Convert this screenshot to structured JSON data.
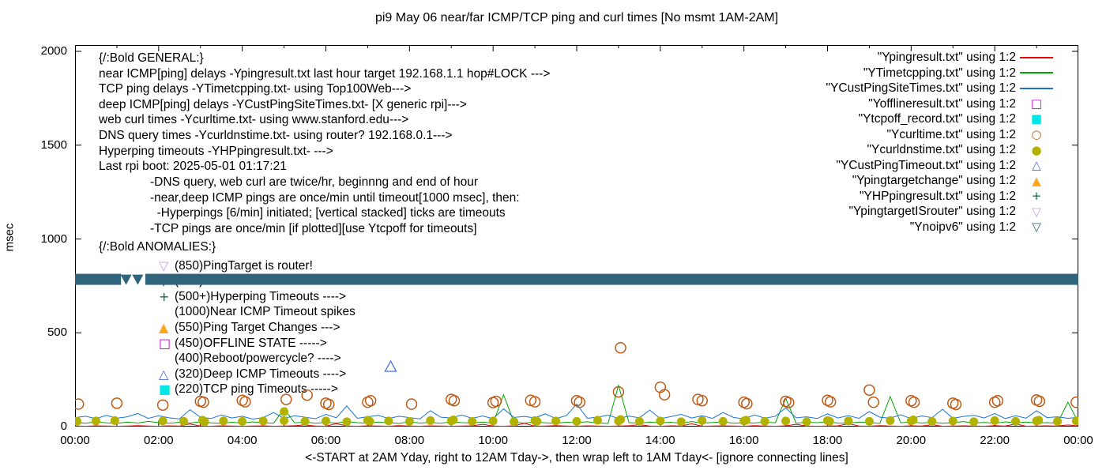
{
  "title": "pi9 May 06  near/far ICMP/TCP ping and curl times [No msmt 1AM-2AM]",
  "axes": {
    "ylabel": "msec",
    "y_ticks": [
      0,
      500,
      1000,
      1500,
      2000
    ],
    "x_tick_labels": [
      "00:00",
      "02:00",
      "04:00",
      "06:00",
      "08:00",
      "10:00",
      "12:00",
      "14:00",
      "16:00",
      "18:00",
      "20:00",
      "22:00",
      "00:00"
    ],
    "x_caption": "<-START at 2AM Yday, right to 12AM Tday->, then wrap left to 1AM Tday<- [ignore connecting lines]"
  },
  "annotations": {
    "general_lines": [
      "{/:Bold GENERAL:}",
      "near ICMP[ping] delays -Ypingresult.txt last hour target 192.168.1.1 hop#LOCK --->",
      "TCP ping delays -YTimetcpping.txt- using Top100Web--->",
      "deep ICMP[ping] delays -YCustPingSiteTimes.txt- [X generic rpi]--->",
      "web curl times -Ycurltime.txt- using www.stanford.edu--->",
      "DNS query times -Ycurldnstime.txt- using router? 192.168.0.1--->",
      "Hyperping timeouts -YHPpingresult.txt- --->",
      "Last rpi boot: 2025-05-01 01:17:21"
    ],
    "note_lines": [
      "-DNS query, web curl are twice/hr, beginnng and end of hour",
      "-near,deep ICMP pings are once/min until timeout[1000 msec], then:",
      "  -Hyperpings [6/min] initiated; [vertical stacked] ticks are timeouts",
      "-TCP pings are once/min [if plotted][use Ytcpoff for timeouts]"
    ],
    "anomalies_header": "{/:Bold ANOMALIES:}",
    "anomalies": [
      {
        "glyph": "▽",
        "color": "#c79cf0",
        "text": "(850)PingTarget is router!"
      },
      {
        "glyph": "▽",
        "color": "#30637c",
        "text": "(785)No v6 fallback ---->"
      },
      {
        "glyph": "+",
        "color": "#136648",
        "text": "(500+)Hyperping Timeouts ---->"
      },
      {
        "glyph": "",
        "color": "#000000",
        "text": "(1000)Near ICMP Timeout spikes"
      },
      {
        "glyph": "▲",
        "color": "#ffa51e",
        "text": "(550)Ping Target Changes --->"
      },
      {
        "glyph": "□",
        "color": "#c000c0",
        "text": "(450)OFFLINE STATE ----->"
      },
      {
        "glyph": "",
        "color": "#000000",
        "text": "(400)Reboot/powercycle? ---->"
      },
      {
        "glyph": "△",
        "color": "#4a6fdc",
        "text": "(320)Deep ICMP Timeouts ---->"
      },
      {
        "glyph": "■",
        "color": "#00e5e5",
        "text": "(220)TCP ping Timeouts ----->"
      }
    ]
  },
  "legend": {
    "entries": [
      {
        "label": "\"Ypingresult.txt\" using 1:2",
        "marker": "line",
        "color": "#ed0000"
      },
      {
        "label": "\"YTimetcpping.txt\" using 1:2",
        "marker": "line",
        "color": "#00a400"
      },
      {
        "label": "\"YCustPingSiteTimes.txt\" using 1:2",
        "marker": "line",
        "color": "#1a74d4"
      },
      {
        "label": "\"Yofflineresult.txt\" using 1:2",
        "marker": "square-open",
        "color": "#c000c0"
      },
      {
        "label": "\"Ytcpoff_record.txt\" using 1:2",
        "marker": "square-filled",
        "color": "#00e5e5"
      },
      {
        "label": "\"Ycurltime.txt\" using 1:2",
        "marker": "circle-open",
        "color": "#bf5a16"
      },
      {
        "label": "\"Ycurldnstime.txt\" using 1:2",
        "marker": "circle-filled",
        "color": "#b2b200"
      },
      {
        "label": "\"YCustPingTimeout.txt\" using 1:2",
        "marker": "tri-up-open",
        "color": "#4a6fdc"
      },
      {
        "label": "\"Ypingtargetchange\" using 1:2",
        "marker": "tri-up-filled",
        "color": "#ffa51e"
      },
      {
        "label": "\"YHPpingresult.txt\" using 1:2",
        "marker": "plus",
        "color": "#136648"
      },
      {
        "label": "\"YpingtargetISrouter\" using 1:2",
        "marker": "tri-down-open",
        "color": "#c79cf0"
      },
      {
        "label": "\"Ynoipv6\" using 1:2",
        "marker": "tri-down-open",
        "color": "#30637c"
      }
    ]
  },
  "chart_data": {
    "type": "line",
    "x_unit": "hours",
    "x_range": [
      0,
      24
    ],
    "y_range": [
      0,
      2000
    ],
    "y_unit": "msec",
    "grid": false,
    "legend_position": "top-right-inside",
    "sampled_lines": [
      {
        "name": "Ypingresult.txt near ICMP ping",
        "color": "#ed0000",
        "step_min": 15,
        "values": [
          3,
          2,
          4,
          3,
          2,
          3,
          5,
          3,
          2,
          4,
          3,
          14,
          3,
          2,
          4,
          3,
          2,
          3,
          4,
          2,
          3,
          5,
          9,
          3,
          2,
          16,
          3,
          2,
          4,
          3,
          2,
          5,
          3,
          2,
          4,
          3,
          2,
          3,
          4,
          12,
          3,
          2,
          4,
          18,
          2,
          3,
          5,
          3,
          2,
          4,
          3,
          2,
          3,
          5,
          10,
          3,
          2,
          4,
          3,
          15,
          2,
          3,
          4,
          3,
          2,
          5,
          3,
          2,
          4,
          12,
          3,
          2,
          3,
          4,
          16,
          3,
          2,
          5,
          3,
          2,
          4,
          3,
          10,
          2,
          3,
          4,
          3,
          2,
          5,
          3,
          14,
          2,
          3,
          4,
          3,
          9,
          3
        ]
      },
      {
        "name": "YTimetcpping.txt TCP ping",
        "color": "#00a400",
        "step_min": 15,
        "values": [
          22,
          18,
          25,
          20,
          17,
          24,
          19,
          28,
          21,
          18,
          23,
          19,
          26,
          20,
          17,
          23,
          19,
          25,
          21,
          18,
          95,
          20,
          24,
          18,
          22,
          19,
          27,
          21,
          18,
          24,
          20,
          17,
          25,
          19,
          22,
          18,
          26,
          21,
          19,
          24,
          18,
          170,
          22,
          19,
          25,
          20,
          18,
          23,
          21,
          26,
          19,
          17,
          220,
          21,
          18,
          24,
          20,
          23,
          18,
          27,
          19,
          22,
          25,
          18,
          21,
          19,
          24,
          20,
          150,
          18,
          23,
          21,
          26,
          19,
          18,
          24,
          22,
          17,
          160,
          20,
          25,
          19,
          23,
          18,
          21,
          27,
          19,
          22,
          18,
          25,
          20,
          24,
          19,
          21,
          18,
          130,
          23
        ]
      },
      {
        "name": "YCustPingSiteTimes.txt deep ICMP ping",
        "color": "#1a74d4",
        "step_min": 15,
        "values": [
          48,
          55,
          42,
          60,
          45,
          52,
          70,
          44,
          58,
          47,
          41,
          90,
          50,
          43,
          62,
          46,
          55,
          40,
          48,
          75,
          44,
          58,
          50,
          42,
          65,
          47,
          110,
          45,
          52,
          60,
          43,
          55,
          48,
          41,
          85,
          50,
          46,
          62,
          44,
          57,
          42,
          95,
          49,
          54,
          46,
          68,
          43,
          58,
          120,
          45,
          50,
          61,
          44,
          56,
          47,
          88,
          42,
          53,
          65,
          46,
          58,
          44,
          75,
          49,
          41,
          62,
          45,
          55,
          100,
          47,
          52,
          43,
          68,
          46,
          59,
          44,
          80,
          50,
          45,
          63,
          42,
          57,
          48,
          92,
          44,
          54,
          60,
          46,
          70,
          43,
          58,
          45,
          85,
          48,
          52,
          44,
          50
        ]
      }
    ],
    "point_series": [
      {
        "name": "Ycurltime.txt web curl times",
        "marker": "circle-open",
        "color": "#bf5a16",
        "points": [
          [
            0.08,
            120
          ],
          [
            1.0,
            125
          ],
          [
            2.1,
            115
          ],
          [
            3.0,
            135
          ],
          [
            3.07,
            130
          ],
          [
            4.0,
            140
          ],
          [
            4.07,
            132
          ],
          [
            5.05,
            145
          ],
          [
            5.55,
            168
          ],
          [
            6.0,
            125
          ],
          [
            6.07,
            118
          ],
          [
            7.0,
            130
          ],
          [
            7.07,
            138
          ],
          [
            8.05,
            120
          ],
          [
            9.0,
            145
          ],
          [
            9.07,
            138
          ],
          [
            10.0,
            128
          ],
          [
            10.07,
            135
          ],
          [
            10.9,
            140
          ],
          [
            11.0,
            132
          ],
          [
            12.0,
            138
          ],
          [
            12.07,
            130
          ],
          [
            13.0,
            185
          ],
          [
            13.05,
            420
          ],
          [
            14.0,
            210
          ],
          [
            14.1,
            170
          ],
          [
            14.9,
            145
          ],
          [
            15.0,
            138
          ],
          [
            16.0,
            130
          ],
          [
            16.07,
            122
          ],
          [
            17.0,
            135
          ],
          [
            17.07,
            128
          ],
          [
            18.0,
            140
          ],
          [
            18.07,
            132
          ],
          [
            19.0,
            195
          ],
          [
            19.1,
            130
          ],
          [
            20.0,
            138
          ],
          [
            20.07,
            130
          ],
          [
            21.0,
            125
          ],
          [
            21.07,
            118
          ],
          [
            22.0,
            130
          ],
          [
            22.07,
            138
          ],
          [
            23.0,
            142
          ],
          [
            23.07,
            135
          ],
          [
            23.95,
            130
          ]
        ]
      },
      {
        "name": "Ycurldnstime.txt DNS query times",
        "marker": "circle-filled",
        "color": "#b2b200",
        "points": [
          [
            0.05,
            28
          ],
          [
            0.5,
            30
          ],
          [
            0.95,
            32
          ],
          [
            2.1,
            30
          ],
          [
            2.6,
            28
          ],
          [
            3.05,
            34
          ],
          [
            3.1,
            26
          ],
          [
            3.55,
            30
          ],
          [
            4.0,
            28
          ],
          [
            4.5,
            30
          ],
          [
            5.0,
            80
          ],
          [
            5.0,
            32
          ],
          [
            5.5,
            28
          ],
          [
            6.0,
            30
          ],
          [
            6.5,
            26
          ],
          [
            7.0,
            34
          ],
          [
            7.05,
            28
          ],
          [
            7.5,
            30
          ],
          [
            8.0,
            28
          ],
          [
            8.5,
            32
          ],
          [
            9.0,
            30
          ],
          [
            9.05,
            36
          ],
          [
            9.5,
            28
          ],
          [
            10.0,
            30
          ],
          [
            10.5,
            26
          ],
          [
            11.0,
            32
          ],
          [
            11.05,
            28
          ],
          [
            11.5,
            30
          ],
          [
            12.0,
            28
          ],
          [
            12.5,
            34
          ],
          [
            13.0,
            30
          ],
          [
            13.05,
            38
          ],
          [
            13.5,
            28
          ],
          [
            14.0,
            30
          ],
          [
            14.5,
            26
          ],
          [
            15.0,
            32
          ],
          [
            15.5,
            28
          ],
          [
            16.0,
            30
          ],
          [
            16.05,
            34
          ],
          [
            16.5,
            28
          ],
          [
            17.0,
            30
          ],
          [
            17.5,
            26
          ],
          [
            18.0,
            32
          ],
          [
            18.05,
            28
          ],
          [
            18.5,
            30
          ],
          [
            19.0,
            28
          ],
          [
            19.5,
            32
          ],
          [
            20.0,
            30
          ],
          [
            20.05,
            36
          ],
          [
            20.5,
            28
          ],
          [
            21.0,
            30
          ],
          [
            21.5,
            26
          ],
          [
            22.0,
            32
          ],
          [
            22.5,
            28
          ],
          [
            23.0,
            30
          ],
          [
            23.05,
            34
          ],
          [
            23.5,
            28
          ],
          [
            23.95,
            30
          ]
        ]
      },
      {
        "name": "YCustPingTimeout.txt deep ICMP timeouts",
        "marker": "tri-up-open",
        "color": "#4a6fdc",
        "points": [
          [
            7.55,
            320
          ]
        ]
      },
      {
        "name": "Yofflineresult.txt offline state",
        "marker": "square-open",
        "color": "#c000c0",
        "points": []
      },
      {
        "name": "Ytcpoff_record.txt TCP ping timeouts",
        "marker": "square-filled",
        "color": "#00e5e5",
        "points": []
      },
      {
        "name": "Ypingtargetchange",
        "marker": "tri-up-filled",
        "color": "#ffa51e",
        "points": []
      },
      {
        "name": "YHPpingresult.txt hyperping timeouts",
        "marker": "plus",
        "color": "#136648",
        "points": []
      },
      {
        "name": "YpingtargetISrouter",
        "marker": "tri-down-open",
        "color": "#c79cf0",
        "points": []
      }
    ],
    "band": {
      "name": "Ynoipv6 no-IPv6 marker band",
      "value": 785,
      "color": "#30637c",
      "segments": [
        [
          0,
          1.1
        ],
        [
          1.68,
          24
        ]
      ],
      "gap_triangles": [
        1.22,
        1.5
      ]
    }
  }
}
